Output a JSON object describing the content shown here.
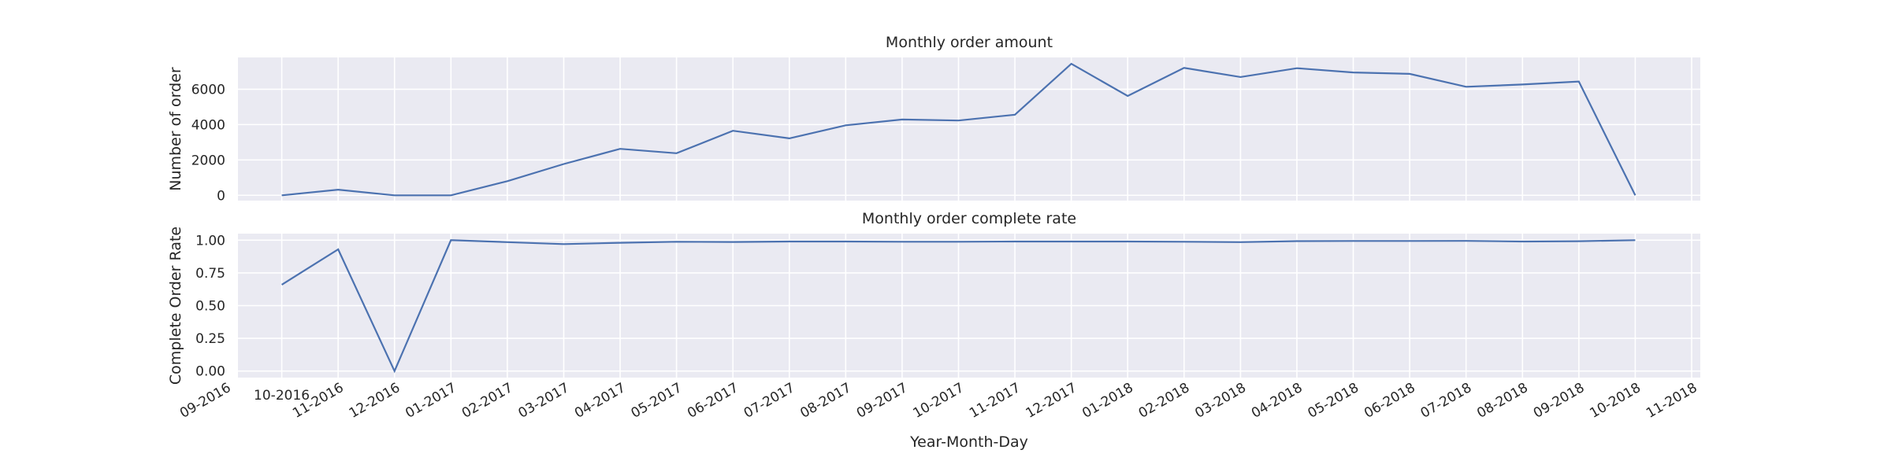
{
  "chart_data": [
    {
      "type": "line",
      "title": "Monthly order amount",
      "ylabel": "Number of order",
      "xlabel": "",
      "ylim": [
        -300,
        7800
      ],
      "yticks": [
        "0",
        "2000",
        "4000",
        "6000"
      ],
      "grid": true,
      "line_color": "#4c72b0",
      "background": "#eaeaf2",
      "x": [
        "10-2016",
        "11-2016",
        "12-2016",
        "01-2017",
        "02-2017",
        "03-2017",
        "04-2017",
        "05-2017",
        "06-2017",
        "07-2017",
        "08-2017",
        "09-2017",
        "10-2017",
        "11-2017",
        "12-2017",
        "01-2018",
        "02-2018",
        "03-2018",
        "04-2018",
        "05-2018",
        "06-2018",
        "07-2018",
        "08-2018",
        "09-2018",
        "10-2018"
      ],
      "values": [
        0,
        320,
        0,
        0,
        800,
        1770,
        2630,
        2380,
        3650,
        3220,
        3960,
        4290,
        4230,
        4560,
        7440,
        5620,
        7210,
        6690,
        7190,
        6950,
        6870,
        6140,
        6270,
        6440,
        0
      ]
    },
    {
      "type": "line",
      "title": "Monthly order complete rate",
      "ylabel": "Complete Order Rate",
      "xlabel": "Year-Month-Day",
      "ylim": [
        -0.05,
        1.05
      ],
      "yticks": [
        "0.00",
        "0.25",
        "0.50",
        "0.75",
        "1.00"
      ],
      "grid": true,
      "line_color": "#4c72b0",
      "background": "#eaeaf2",
      "xticks": [
        "09-2016",
        "10-2016",
        "11-2016",
        "12-2016",
        "01-2017",
        "02-2017",
        "03-2017",
        "04-2017",
        "05-2017",
        "06-2017",
        "07-2017",
        "08-2017",
        "09-2017",
        "10-2017",
        "11-2017",
        "12-2017",
        "01-2018",
        "02-2018",
        "03-2018",
        "04-2018",
        "05-2018",
        "06-2018",
        "07-2018",
        "08-2018",
        "09-2018",
        "10-2018",
        "11-2018"
      ],
      "x": [
        "10-2016",
        "11-2016",
        "12-2016",
        "01-2017",
        "02-2017",
        "03-2017",
        "04-2017",
        "05-2017",
        "06-2017",
        "07-2017",
        "08-2017",
        "09-2017",
        "10-2017",
        "11-2017",
        "12-2017",
        "01-2018",
        "02-2018",
        "03-2018",
        "04-2018",
        "05-2018",
        "06-2018",
        "07-2018",
        "08-2018",
        "09-2018",
        "10-2018"
      ],
      "values": [
        0.66,
        0.93,
        0.0,
        1.0,
        0.985,
        0.97,
        0.98,
        0.988,
        0.986,
        0.99,
        0.99,
        0.988,
        0.988,
        0.99,
        0.99,
        0.99,
        0.988,
        0.985,
        0.993,
        0.994,
        0.994,
        0.995,
        0.99,
        0.992,
        1.0
      ]
    }
  ]
}
